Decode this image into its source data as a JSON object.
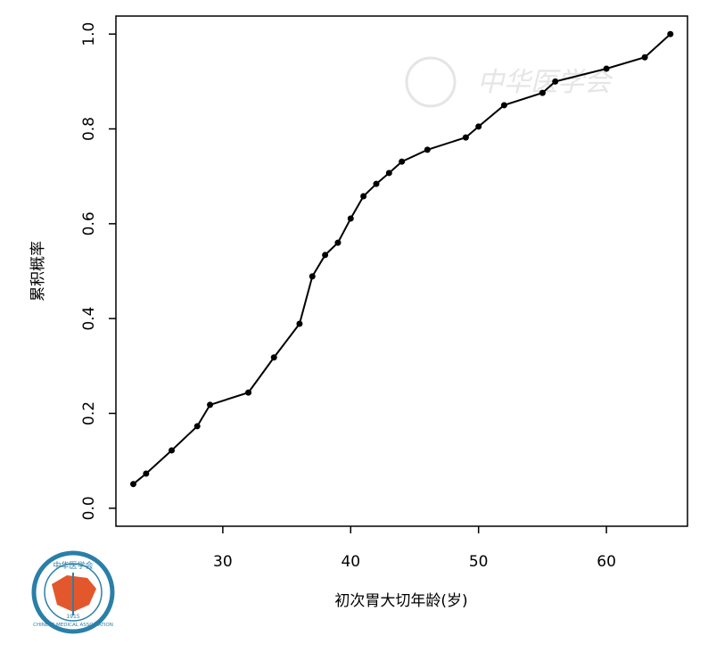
{
  "chart_data": {
    "type": "line",
    "xlabel": "初次胃大切年龄(岁)",
    "ylabel": "累积概率",
    "x": [
      23,
      24,
      26,
      28,
      29,
      32,
      34,
      36,
      37,
      38,
      39,
      40,
      41,
      42,
      43,
      44,
      46,
      49,
      50,
      52,
      55,
      56,
      60,
      63,
      65
    ],
    "series": [
      {
        "color": "#000000",
        "values": [
          0.051,
          0.073,
          0.122,
          0.173,
          0.218,
          0.244,
          0.318,
          0.389,
          0.489,
          0.534,
          0.56,
          0.611,
          0.658,
          0.684,
          0.707,
          0.731,
          0.756,
          0.782,
          0.805,
          0.85,
          0.876,
          0.9,
          0.927,
          0.951,
          1.0
        ]
      }
    ],
    "xlim": [
      21.64,
      66.34
    ],
    "xticks": [
      30,
      40,
      50,
      60
    ],
    "ylim": [
      -0.038,
      1.038
    ],
    "yticks": [
      {
        "value": 0,
        "label": "0.0"
      },
      0.2,
      0.4,
      0.6,
      0.8,
      {
        "value": 1,
        "label": "1.0"
      }
    ],
    "grid": false,
    "watermark": "中华医学会",
    "logo": {
      "top": "中华医学会",
      "bottom": "CHINESE MEDICAL ASSOCIATION",
      "year": "1915"
    }
  }
}
